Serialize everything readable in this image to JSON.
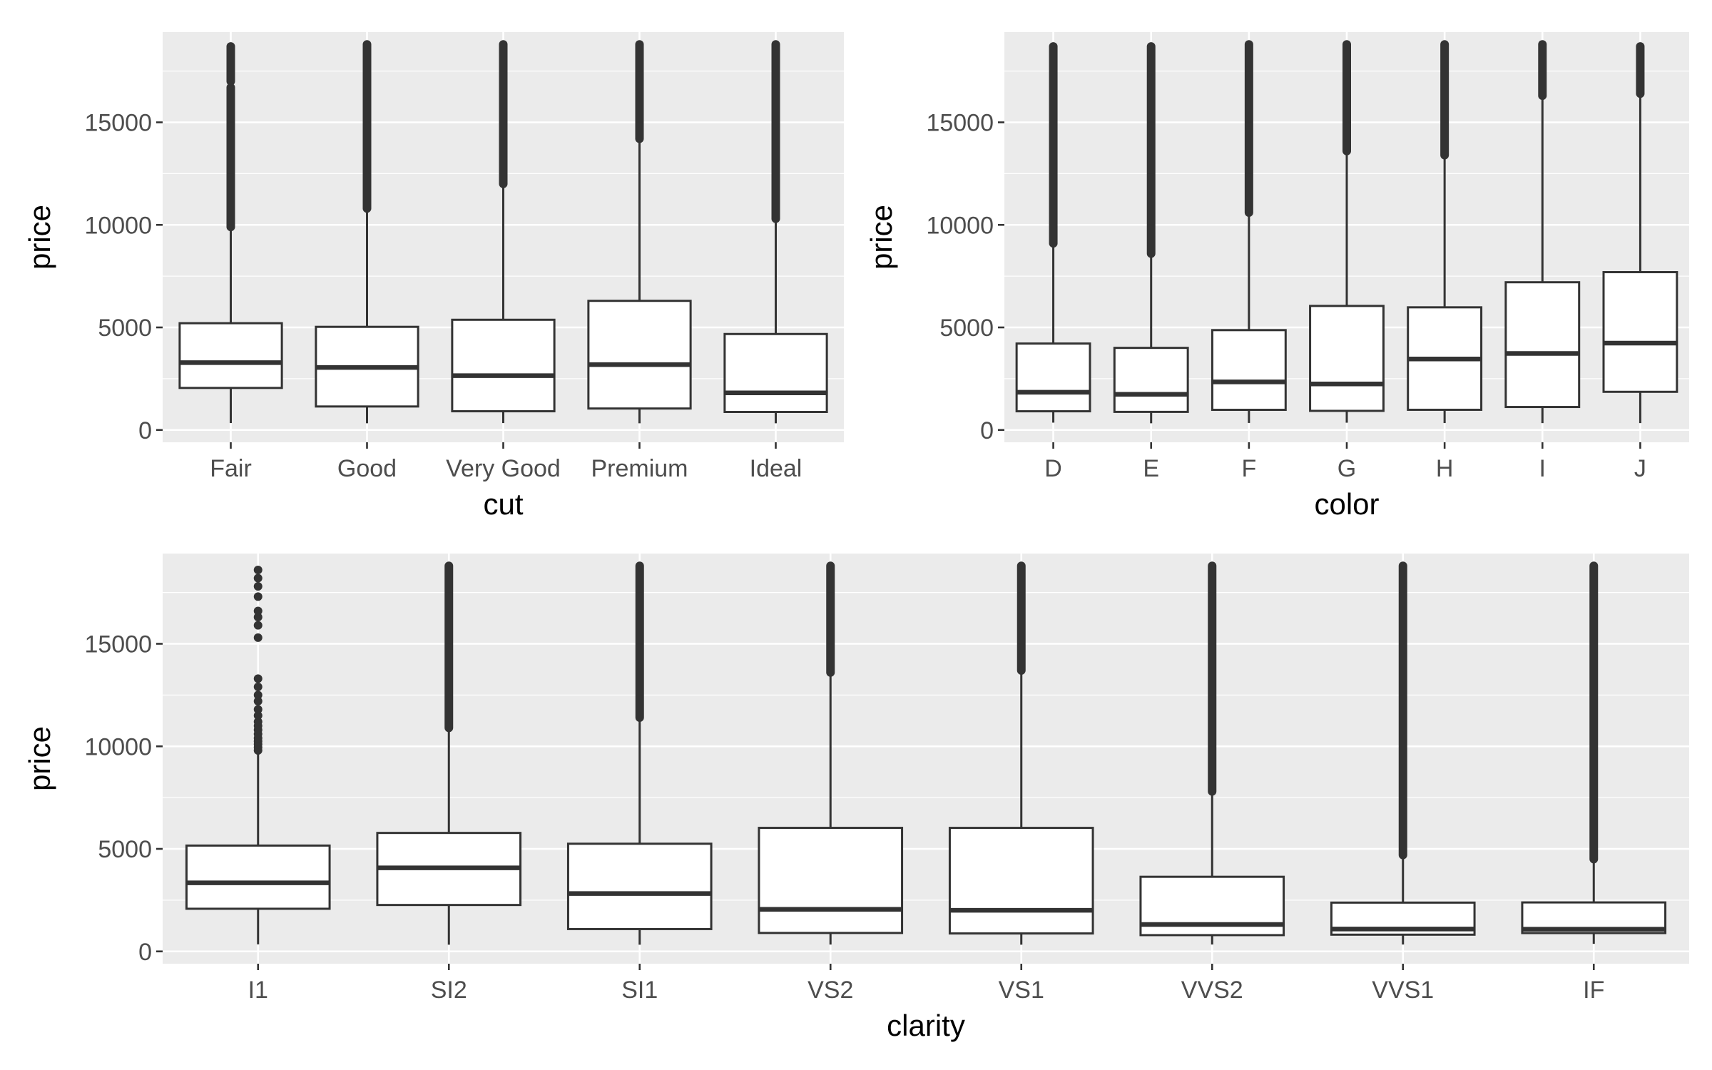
{
  "chart_data": [
    {
      "type": "boxplot",
      "xlabel": "cut",
      "ylabel": "price",
      "ylim": [
        -600,
        19400
      ],
      "yticks": [
        0,
        5000,
        10000,
        15000
      ],
      "ytick_labels": [
        "0",
        "5000",
        "10000",
        "15000"
      ],
      "grid": true,
      "categories": [
        "Fair",
        "Good",
        "Very Good",
        "Premium",
        "Ideal"
      ],
      "boxes": [
        {
          "low": 337,
          "q1": 2050,
          "median": 3282,
          "q3": 5206,
          "high": 9900,
          "outliers_from": 9900,
          "outliers_to": 18700,
          "outlier_gap": [
            16700,
            17000
          ]
        },
        {
          "low": 327,
          "q1": 1145,
          "median": 3050,
          "q3": 5028,
          "high": 10800,
          "outliers_from": 10800,
          "outliers_to": 18800
        },
        {
          "low": 336,
          "q1": 912,
          "median": 2648,
          "q3": 5373,
          "high": 12000,
          "outliers_from": 12000,
          "outliers_to": 18800
        },
        {
          "low": 326,
          "q1": 1046,
          "median": 3185,
          "q3": 6296,
          "high": 14200,
          "outliers_from": 14200,
          "outliers_to": 18800
        },
        {
          "low": 326,
          "q1": 878,
          "median": 1810,
          "q3": 4678,
          "high": 10300,
          "outliers_from": 10300,
          "outliers_to": 18800
        }
      ]
    },
    {
      "type": "boxplot",
      "xlabel": "color",
      "ylabel": "price",
      "ylim": [
        -600,
        19400
      ],
      "yticks": [
        0,
        5000,
        10000,
        15000
      ],
      "ytick_labels": [
        "0",
        "5000",
        "10000",
        "15000"
      ],
      "grid": true,
      "categories": [
        "D",
        "E",
        "F",
        "G",
        "H",
        "I",
        "J"
      ],
      "boxes": [
        {
          "low": 357,
          "q1": 911,
          "median": 1838,
          "q3": 4214,
          "high": 9100,
          "outliers_from": 9100,
          "outliers_to": 18700
        },
        {
          "low": 326,
          "q1": 882,
          "median": 1739,
          "q3": 4003,
          "high": 8600,
          "outliers_from": 8600,
          "outliers_to": 18700
        },
        {
          "low": 342,
          "q1": 982,
          "median": 2344,
          "q3": 4868,
          "high": 10600,
          "outliers_from": 10600,
          "outliers_to": 18800
        },
        {
          "low": 354,
          "q1": 931,
          "median": 2242,
          "q3": 6048,
          "high": 13600,
          "outliers_from": 13600,
          "outliers_to": 18800
        },
        {
          "low": 337,
          "q1": 984,
          "median": 3460,
          "q3": 5980,
          "high": 13400,
          "outliers_from": 13400,
          "outliers_to": 18800
        },
        {
          "low": 334,
          "q1": 1120,
          "median": 3730,
          "q3": 7202,
          "high": 16300,
          "outliers_from": 16300,
          "outliers_to": 18800
        },
        {
          "low": 335,
          "q1": 1860,
          "median": 4234,
          "q3": 7695,
          "high": 16400,
          "outliers_from": 16400,
          "outliers_to": 18700
        }
      ]
    },
    {
      "type": "boxplot",
      "xlabel": "clarity",
      "ylabel": "price",
      "ylim": [
        -600,
        19400
      ],
      "yticks": [
        0,
        5000,
        10000,
        15000
      ],
      "ytick_labels": [
        "0",
        "5000",
        "10000",
        "15000"
      ],
      "grid": true,
      "categories": [
        "I1",
        "SI2",
        "SI1",
        "VS2",
        "VS1",
        "VVS2",
        "VVS1",
        "IF"
      ],
      "boxes": [
        {
          "low": 345,
          "q1": 2080,
          "median": 3344,
          "q3": 5161,
          "high": 9800,
          "outliers": [
            9800,
            9950,
            10100,
            10250,
            10400,
            10600,
            10800,
            11000,
            11200,
            11500,
            11800,
            12200,
            12500,
            12900,
            13300,
            15300,
            15900,
            16300,
            16600,
            17300,
            17800,
            18200,
            18600
          ]
        },
        {
          "low": 326,
          "q1": 2264,
          "median": 4072,
          "q3": 5777,
          "high": 10900,
          "outliers_from": 10900,
          "outliers_to": 18800
        },
        {
          "low": 326,
          "q1": 1089,
          "median": 2822,
          "q3": 5250,
          "high": 11400,
          "outliers_from": 11400,
          "outliers_to": 18800
        },
        {
          "low": 334,
          "q1": 900,
          "median": 2054,
          "q3": 6024,
          "high": 13600,
          "outliers_from": 13600,
          "outliers_to": 18800
        },
        {
          "low": 327,
          "q1": 876,
          "median": 2005,
          "q3": 6023,
          "high": 13700,
          "outliers_from": 13700,
          "outliers_to": 18800
        },
        {
          "low": 336,
          "q1": 794,
          "median": 1311,
          "q3": 3638,
          "high": 7800,
          "outliers_from": 7800,
          "outliers_to": 18800
        },
        {
          "low": 336,
          "q1": 816,
          "median": 1093,
          "q3": 2379,
          "high": 4700,
          "outliers_from": 4700,
          "outliers_to": 18800
        },
        {
          "low": 369,
          "q1": 895,
          "median": 1081,
          "q3": 2388,
          "high": 4500,
          "outliers_from": 4500,
          "outliers_to": 18800
        }
      ]
    }
  ]
}
